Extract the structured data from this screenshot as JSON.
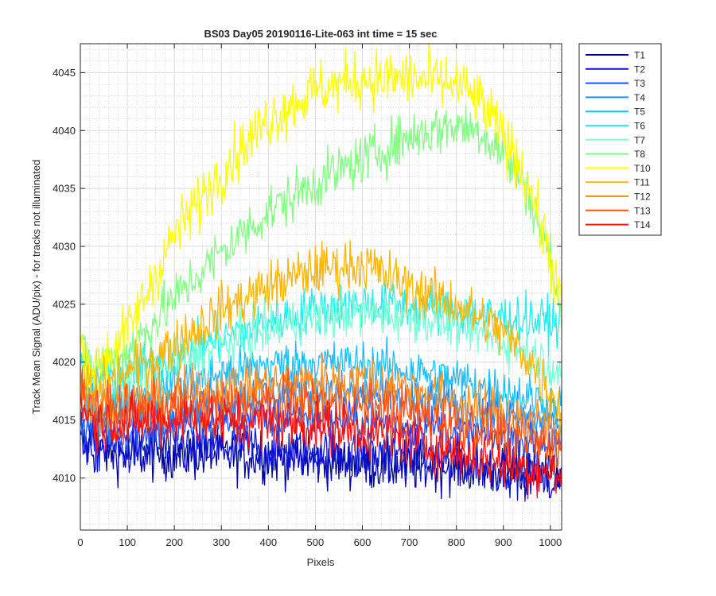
{
  "chart_data": {
    "type": "line",
    "title": "BS03 Day05 20190116-Lite-063 int time = 15 sec",
    "xlabel": "Pixels",
    "ylabel": "Track Mean Signal (ADU/pix) - for tracks not illuminated",
    "xlim": [
      0,
      1024
    ],
    "ylim": [
      4005.5,
      4047.5
    ],
    "xticks": [
      0,
      100,
      200,
      300,
      400,
      500,
      600,
      700,
      800,
      900,
      1000
    ],
    "yticks": [
      4010,
      4015,
      4020,
      4025,
      4030,
      4035,
      4040,
      4045
    ],
    "grid": true,
    "minor_grid": true,
    "legend_position": "outside-top-right",
    "series": [
      {
        "name": "T1",
        "color": "#0000a8",
        "noise": 1.6,
        "x": [
          0,
          30,
          100,
          200,
          300,
          400,
          500,
          600,
          700,
          800,
          900,
          1000,
          1024
        ],
        "values": [
          4013.0,
          4012.3,
          4012.0,
          4012.0,
          4012.0,
          4011.8,
          4011.5,
          4011.2,
          4011.0,
          4011.0,
          4010.5,
          4010.0,
          4009.8
        ]
      },
      {
        "name": "T2",
        "color": "#0a14d2",
        "noise": 1.6,
        "x": [
          0,
          30,
          100,
          200,
          300,
          400,
          500,
          600,
          700,
          800,
          900,
          1000,
          1024
        ],
        "values": [
          4013.5,
          4012.8,
          4012.5,
          4012.6,
          4012.6,
          4012.5,
          4012.3,
          4012.0,
          4011.8,
          4011.5,
          4011.0,
          4010.5,
          4010.3
        ]
      },
      {
        "name": "T3",
        "color": "#1a50ff",
        "noise": 1.4,
        "x": [
          0,
          30,
          100,
          200,
          300,
          400,
          500,
          600,
          700,
          800,
          900,
          1000,
          1024
        ],
        "values": [
          4015.0,
          4014.0,
          4014.0,
          4014.5,
          4015.0,
          4015.2,
          4015.3,
          4015.0,
          4014.6,
          4014.0,
          4013.5,
          4013.0,
          4012.8
        ]
      },
      {
        "name": "T4",
        "color": "#1e8cff",
        "noise": 1.4,
        "x": [
          0,
          30,
          100,
          200,
          300,
          400,
          500,
          600,
          700,
          800,
          900,
          1000,
          1024
        ],
        "values": [
          4016.0,
          4015.0,
          4015.2,
          4016.0,
          4016.8,
          4017.2,
          4017.5,
          4017.2,
          4016.8,
          4016.2,
          4015.5,
          4014.8,
          4014.5
        ]
      },
      {
        "name": "T5",
        "color": "#18c0ff",
        "noise": 1.4,
        "x": [
          0,
          30,
          100,
          200,
          300,
          400,
          500,
          600,
          700,
          800,
          900,
          1000,
          1024
        ],
        "values": [
          4017.5,
          4016.2,
          4016.5,
          4018.0,
          4019.0,
          4019.8,
          4020.0,
          4019.8,
          4019.3,
          4018.5,
          4017.5,
          4016.5,
          4016.0
        ]
      },
      {
        "name": "T6",
        "color": "#20f0f0",
        "noise": 1.5,
        "x": [
          0,
          30,
          100,
          200,
          300,
          400,
          500,
          600,
          700,
          800,
          900,
          1000,
          1024
        ],
        "values": [
          4020.5,
          4018.5,
          4019.0,
          4020.5,
          4022.0,
          4023.5,
          4024.5,
          4025.0,
          4024.8,
          4024.3,
          4023.8,
          4023.5,
          4023.3
        ]
      },
      {
        "name": "T7",
        "color": "#7affd8",
        "noise": 1.4,
        "x": [
          0,
          30,
          100,
          200,
          300,
          400,
          500,
          600,
          700,
          800,
          900,
          1000,
          1024
        ],
        "values": [
          4019.5,
          4017.8,
          4018.5,
          4020.0,
          4021.5,
          4022.8,
          4023.8,
          4024.2,
          4024.0,
          4023.2,
          4021.8,
          4019.8,
          4019.0
        ]
      },
      {
        "name": "T8",
        "color": "#80ff80",
        "noise": 1.6,
        "x": [
          0,
          30,
          100,
          200,
          300,
          400,
          500,
          600,
          700,
          800,
          850,
          900,
          950,
          1000,
          1024
        ],
        "values": [
          4021.0,
          4019.5,
          4021.0,
          4025.5,
          4029.5,
          4033.0,
          4035.5,
          4037.5,
          4039.5,
          4040.5,
          4040.0,
          4038.0,
          4035.0,
          4029.0,
          4023.5
        ]
      },
      {
        "name": "T10",
        "color": "#ffff00",
        "noise": 1.8,
        "x": [
          0,
          30,
          100,
          200,
          300,
          400,
          500,
          600,
          700,
          800,
          850,
          900,
          950,
          1000,
          1024
        ],
        "values": [
          4021.0,
          4019.5,
          4022.5,
          4031.0,
          4036.5,
          4041.0,
          4043.5,
          4044.5,
          4044.5,
          4044.0,
          4042.5,
          4039.5,
          4036.0,
          4029.0,
          4024.5
        ]
      },
      {
        "name": "T11",
        "color": "#ffb400",
        "noise": 1.6,
        "x": [
          0,
          30,
          100,
          200,
          300,
          400,
          500,
          600,
          700,
          800,
          900,
          950,
          1000,
          1024
        ],
        "values": [
          4019.0,
          4017.5,
          4019.0,
          4021.5,
          4024.5,
          4026.5,
          4028.0,
          4028.5,
          4026.5,
          4025.0,
          4022.5,
          4020.5,
          4017.5,
          4015.5
        ]
      },
      {
        "name": "T12",
        "color": "#ff8c1e",
        "noise": 1.6,
        "x": [
          0,
          30,
          100,
          200,
          300,
          400,
          500,
          600,
          700,
          800,
          900,
          1000,
          1024
        ],
        "values": [
          4018.0,
          4016.2,
          4016.5,
          4017.0,
          4017.5,
          4018.0,
          4018.3,
          4018.3,
          4017.8,
          4016.5,
          4015.5,
          4014.5,
          4014.0
        ]
      },
      {
        "name": "T13",
        "color": "#ff5014",
        "noise": 1.6,
        "x": [
          0,
          30,
          100,
          200,
          300,
          400,
          500,
          600,
          700,
          800,
          900,
          1000,
          1024
        ],
        "values": [
          4017.5,
          4015.8,
          4015.8,
          4016.0,
          4016.3,
          4016.5,
          4016.5,
          4016.2,
          4015.6,
          4014.8,
          4013.8,
          4012.8,
          4012.5
        ]
      },
      {
        "name": "T14",
        "color": "#ff1010",
        "noise": 1.6,
        "x": [
          0,
          30,
          100,
          200,
          300,
          400,
          500,
          600,
          700,
          800,
          900,
          1000,
          1024
        ],
        "values": [
          4016.5,
          4014.8,
          4014.8,
          4015.0,
          4015.0,
          4014.8,
          4014.5,
          4014.0,
          4013.2,
          4012.2,
          4011.2,
          4010.5,
          4010.2
        ]
      }
    ]
  }
}
